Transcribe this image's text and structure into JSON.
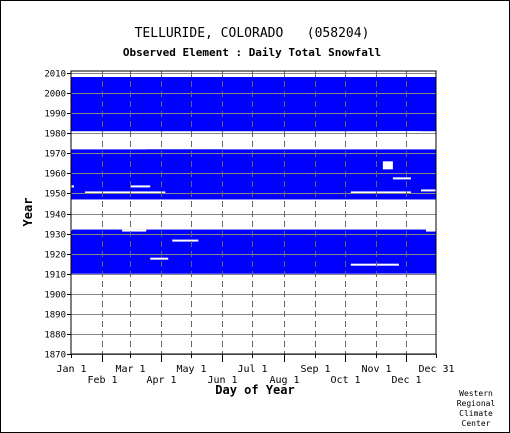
{
  "chart_data": {
    "type": "heatmap",
    "title": "TELLURIDE, COLORADO   (058204)",
    "subtitle": "Observed Element : Daily Total Snowfall",
    "xlabel": "Day of Year",
    "ylabel": "Year",
    "xlim": [
      1,
      365
    ],
    "ylim": [
      1870,
      2011
    ],
    "grid": true,
    "color": "#0000ff",
    "x_ticks_top_row": [
      {
        "label": "Jan 1",
        "day": 1
      },
      {
        "label": "Mar 1",
        "day": 60
      },
      {
        "label": "May 1",
        "day": 121
      },
      {
        "label": "Jul 1",
        "day": 182
      },
      {
        "label": "Sep 1",
        "day": 244
      },
      {
        "label": "Nov 1",
        "day": 305
      },
      {
        "label": "Dec 31",
        "day": 365
      }
    ],
    "x_ticks_bottom_row": [
      {
        "label": "Feb 1",
        "day": 32
      },
      {
        "label": "Apr 1",
        "day": 91
      },
      {
        "label": "Jun 1",
        "day": 152
      },
      {
        "label": "Aug 1",
        "day": 213
      },
      {
        "label": "Oct 1",
        "day": 274
      },
      {
        "label": "Dec 1",
        "day": 335
      }
    ],
    "y_ticks": [
      "2010",
      "2000",
      "1990",
      "1980",
      "1970",
      "1960",
      "1950",
      "1940",
      "1930",
      "1920",
      "1910",
      "1900",
      "1890",
      "1880",
      "1870"
    ],
    "observed_blocks": [
      {
        "day_start": 1,
        "day_end": 365,
        "year_start": 1981,
        "year_end": 2008
      },
      {
        "day_start": 1,
        "day_end": 365,
        "year_start": 1947,
        "year_end": 1972
      },
      {
        "day_start": 1,
        "day_end": 365,
        "year_start": 1910,
        "year_end": 1932
      }
    ],
    "missing_segments": [
      {
        "day_start": 150,
        "day_end": 365,
        "year_start": 1972,
        "year_end": 1979
      },
      {
        "day_start": 1,
        "day_end": 76,
        "year_start": 1972,
        "year_end": 1977
      },
      {
        "day_start": 305,
        "day_end": 365,
        "year_start": 1908,
        "year_end": 1910
      },
      {
        "day_start": 1,
        "day_end": 2,
        "year_start": 1932,
        "year_end": 1932
      },
      {
        "day_start": 102,
        "day_end": 128,
        "year_start": 1979,
        "year_end": 1980
      },
      {
        "day_start": 102,
        "day_end": 150,
        "year_start": 1976,
        "year_end": 1977
      },
      {
        "day_start": 305,
        "day_end": 350,
        "year_start": 1979,
        "year_end": 1981
      },
      {
        "day_start": 52,
        "day_end": 76,
        "year_start": 1931,
        "year_end": 1932
      },
      {
        "day_start": 280,
        "day_end": 328,
        "year_start": 1914,
        "year_end": 1915
      },
      {
        "day_start": 355,
        "day_end": 365,
        "year_start": 1931,
        "year_end": 1933
      },
      {
        "day_start": 1,
        "day_end": 4,
        "year_start": 1953,
        "year_end": 1954
      },
      {
        "day_start": 280,
        "day_end": 340,
        "year_start": 1950,
        "year_end": 1951
      },
      {
        "day_start": 312,
        "day_end": 322,
        "year_start": 1962,
        "year_end": 1966
      },
      {
        "day_start": 322,
        "day_end": 340,
        "year_start": 1957,
        "year_end": 1958
      },
      {
        "day_start": 60,
        "day_end": 80,
        "year_start": 1953,
        "year_end": 1954
      },
      {
        "day_start": 15,
        "day_end": 95,
        "year_start": 1950,
        "year_end": 1951
      },
      {
        "day_start": 350,
        "day_end": 365,
        "year_start": 1951,
        "year_end": 1952
      },
      {
        "day_start": 102,
        "day_end": 128,
        "year_start": 1926,
        "year_end": 1927
      },
      {
        "day_start": 80,
        "day_end": 98,
        "year_start": 1917,
        "year_end": 1918
      }
    ]
  },
  "credit": [
    "Western",
    "Regional",
    "Climate",
    "Center"
  ]
}
